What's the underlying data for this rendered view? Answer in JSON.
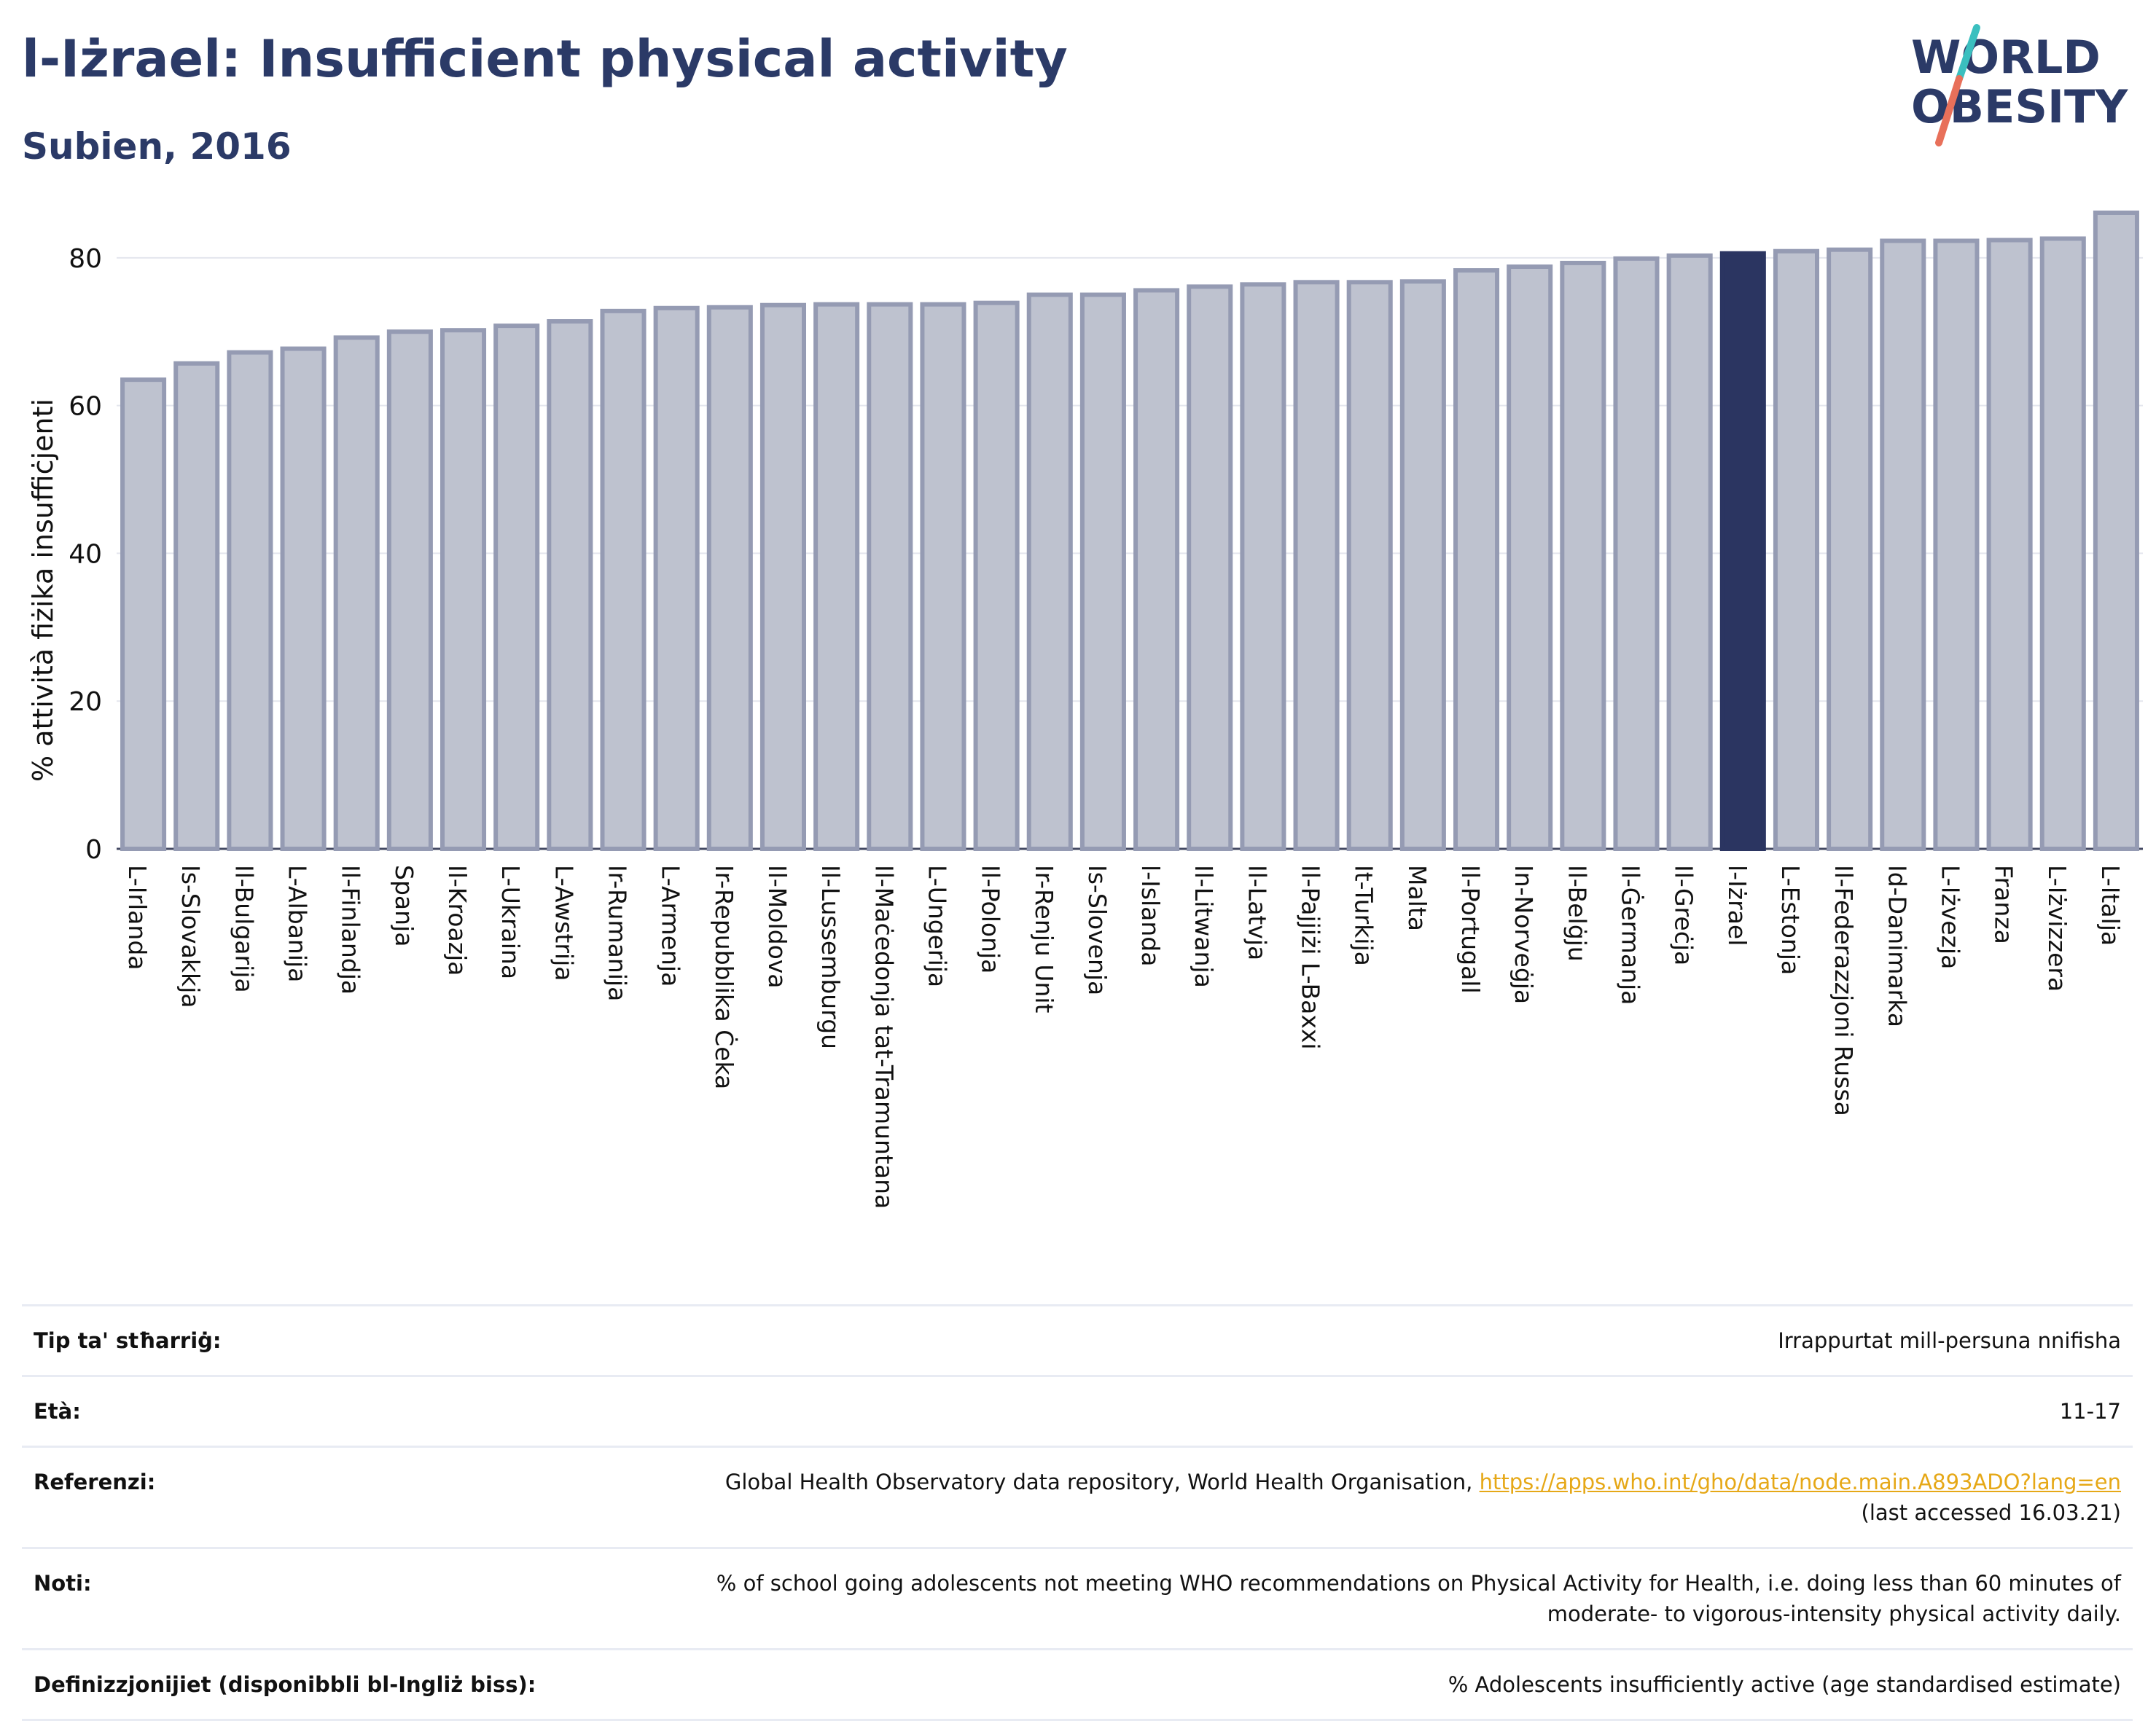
{
  "header": {
    "title": "l-Iżrael: Insufficient physical activity",
    "subtitle": "Subien, 2016"
  },
  "logo": {
    "line1": "WORLD",
    "line2": "OBESITY",
    "text_color": "#2b3a67",
    "slash_top_color": "#3bbfbf",
    "slash_bottom_color": "#e8705a"
  },
  "chart_data": {
    "type": "bar",
    "title": "l-Iżrael: Insufficient physical activity",
    "subtitle": "Subien, 2016",
    "xlabel": "",
    "ylabel": "% attività fiżika insuffiċjenti",
    "ylim": [
      0,
      86
    ],
    "yticks": [
      0,
      20,
      40,
      60,
      80
    ],
    "grid": true,
    "legend": "none",
    "highlight_category": "l-Iżrael",
    "colors": {
      "bar": "#bec2cf",
      "bar_border": "#959bb3",
      "highlight": "#2b3561"
    },
    "categories": [
      "L-Irlanda",
      "Is-Slovakkja",
      "Il-Bulgarija",
      "L-Albanija",
      "Il-Finlandja",
      "Spanja",
      "Il-Kroazja",
      "L-Ukraina",
      "L-Awstrija",
      "Ir-Rumanija",
      "L-Armenja",
      "Ir-Repubblika Ċeka",
      "Il-Moldova",
      "Il-Lussemburgu",
      "Il-Maċedonja tat-Tramuntana",
      "L-Ungerija",
      "Il-Polonja",
      "Ir-Renju Unit",
      "Is-Slovenja",
      "l-Islanda",
      "Il-Litwanja",
      "Il-Latvja",
      "Il-Pajjiżi L-Baxxi",
      "It-Turkija",
      "Malta",
      "Il-Portugall",
      "In-Norveġja",
      "Il-Belġju",
      "Il-Ġermanja",
      "Il-Greċja",
      "l-Iżrael",
      "L-Estonja",
      "Il-Federazzjoni Russa",
      "Id-Danimarka",
      "L-Iżvezja",
      "Franza",
      "L-Iżvizzera",
      "L-Italja"
    ],
    "values": [
      63.5,
      65.7,
      67.2,
      67.7,
      69.2,
      70.0,
      70.2,
      70.8,
      71.4,
      72.8,
      73.2,
      73.3,
      73.6,
      73.7,
      73.7,
      73.7,
      73.9,
      75.0,
      75.0,
      75.6,
      76.1,
      76.4,
      76.7,
      76.7,
      76.8,
      78.3,
      78.8,
      79.3,
      79.9,
      80.3,
      80.6,
      80.9,
      81.1,
      82.3,
      82.3,
      82.4,
      82.6,
      86.1
    ]
  },
  "info": {
    "rows": [
      {
        "key": "Tip ta' stħarriġ:",
        "value": "Irrappurtat mill-persuna nnifisha"
      },
      {
        "key": "Età:",
        "value": "11-17"
      },
      {
        "key": "Referenzi:",
        "value_pre": "Global Health Observatory data repository, World Health Organisation, ",
        "link": "https://apps.who.int/gho/data/node.main.A893ADO?lang=en",
        "value_post": "(last accessed 16.03.21)"
      },
      {
        "key": "Noti:",
        "value": "% of school going adolescents not meeting WHO recommendations on Physical Activity for Health, i.e. doing less than 60 minutes of moderate- to vigorous-intensity physical activity daily."
      },
      {
        "key": "Definizzjonijiet (disponibbli bl-Ingliż biss):",
        "value": "% Adolescents insufficiently active (age standardised estimate)"
      }
    ]
  }
}
